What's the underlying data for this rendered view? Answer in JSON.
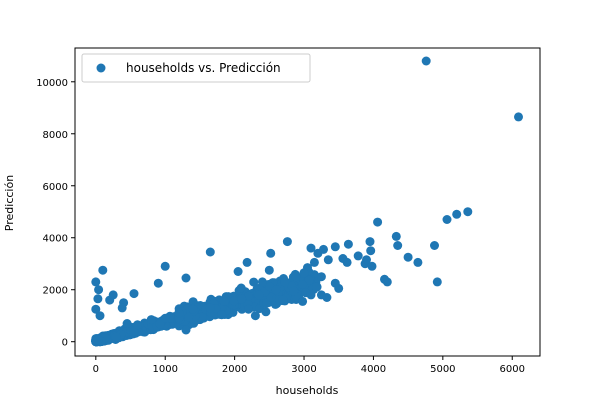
{
  "chart_data": {
    "type": "scatter",
    "xlabel": "households",
    "ylabel": "Predicción",
    "xlim": [
      -300,
      6400
    ],
    "ylim": [
      -550,
      11300
    ],
    "xticks": [
      0,
      1000,
      2000,
      3000,
      4000,
      5000,
      6000
    ],
    "yticks": [
      0,
      2000,
      4000,
      6000,
      8000,
      10000
    ],
    "legend": {
      "position": "upper-left",
      "entries": [
        "households vs. Predicción"
      ]
    },
    "colors": {
      "marker": "#1f77b4"
    },
    "series": [
      {
        "name": "households vs. Predicción",
        "points": [
          [
            6090,
            8650
          ],
          [
            4760,
            10800
          ],
          [
            5360,
            5000
          ],
          [
            5200,
            4900
          ],
          [
            5060,
            4700
          ],
          [
            4880,
            3700
          ],
          [
            4920,
            2300
          ],
          [
            4640,
            3050
          ],
          [
            4500,
            3250
          ],
          [
            4330,
            4050
          ],
          [
            4350,
            3700
          ],
          [
            4200,
            2300
          ],
          [
            4160,
            2400
          ],
          [
            4060,
            4600
          ],
          [
            3950,
            3850
          ],
          [
            3960,
            3500
          ],
          [
            3880,
            3000
          ],
          [
            3900,
            3150
          ],
          [
            3980,
            2900
          ],
          [
            3780,
            3300
          ],
          [
            3640,
            3750
          ],
          [
            3620,
            3050
          ],
          [
            3560,
            3200
          ],
          [
            3450,
            3650
          ],
          [
            3350,
            3150
          ],
          [
            3280,
            3550
          ],
          [
            3200,
            3400
          ],
          [
            3250,
            2500
          ],
          [
            3100,
            3600
          ],
          [
            3150,
            3050
          ],
          [
            3050,
            2850
          ],
          [
            3000,
            2650
          ],
          [
            2980,
            2200
          ],
          [
            2880,
            2500
          ],
          [
            2760,
            3850
          ],
          [
            2660,
            2100
          ],
          [
            2720,
            2300
          ],
          [
            2500,
            2750
          ],
          [
            2520,
            3400
          ],
          [
            2400,
            2300
          ],
          [
            2180,
            3050
          ],
          [
            2050,
            2700
          ],
          [
            2200,
            1750
          ],
          [
            1650,
            3450
          ],
          [
            1300,
            2450
          ],
          [
            1000,
            2900
          ],
          [
            900,
            2250
          ],
          [
            550,
            1850
          ],
          [
            400,
            1500
          ],
          [
            100,
            2750
          ],
          [
            0,
            2300
          ],
          [
            40,
            2000
          ],
          [
            0,
            1250
          ],
          [
            30,
            1650
          ],
          [
            60,
            1000
          ],
          [
            200,
            1600
          ],
          [
            380,
            1300
          ],
          [
            250,
            1800
          ],
          [
            1300,
            450
          ],
          [
            2300,
            1000
          ],
          [
            2200,
            1250
          ],
          [
            2450,
            1150
          ],
          [
            2700,
            1600
          ],
          [
            2980,
            1550
          ],
          [
            3100,
            1800
          ],
          [
            3330,
            1700
          ],
          [
            3500,
            2050
          ],
          [
            3450,
            2250
          ],
          [
            3250,
            1800
          ],
          [
            3180,
            2100
          ],
          [
            2850,
            1950
          ],
          [
            2600,
            2000
          ],
          [
            2350,
            1800
          ],
          [
            2100,
            1650
          ],
          [
            1850,
            1550
          ],
          [
            1650,
            1300
          ],
          [
            1400,
            1250
          ],
          [
            1200,
            1100
          ],
          [
            1000,
            900
          ],
          [
            800,
            850
          ],
          [
            600,
            650
          ],
          [
            450,
            700
          ]
        ],
        "bands": [
          {
            "x_range": [
              0,
              6400
            ],
            "center_slope": 0.72,
            "center_intercept": 30,
            "spread": 500,
            "count": 420
          },
          {
            "x_range": [
              0,
              1200
            ],
            "center_slope": 0.72,
            "center_intercept": 20,
            "spread": 350,
            "count": 520
          },
          {
            "x_range": [
              1200,
              3100
            ],
            "center_slope": 0.72,
            "center_intercept": 80,
            "spread": 650,
            "count": 480
          }
        ]
      }
    ]
  }
}
